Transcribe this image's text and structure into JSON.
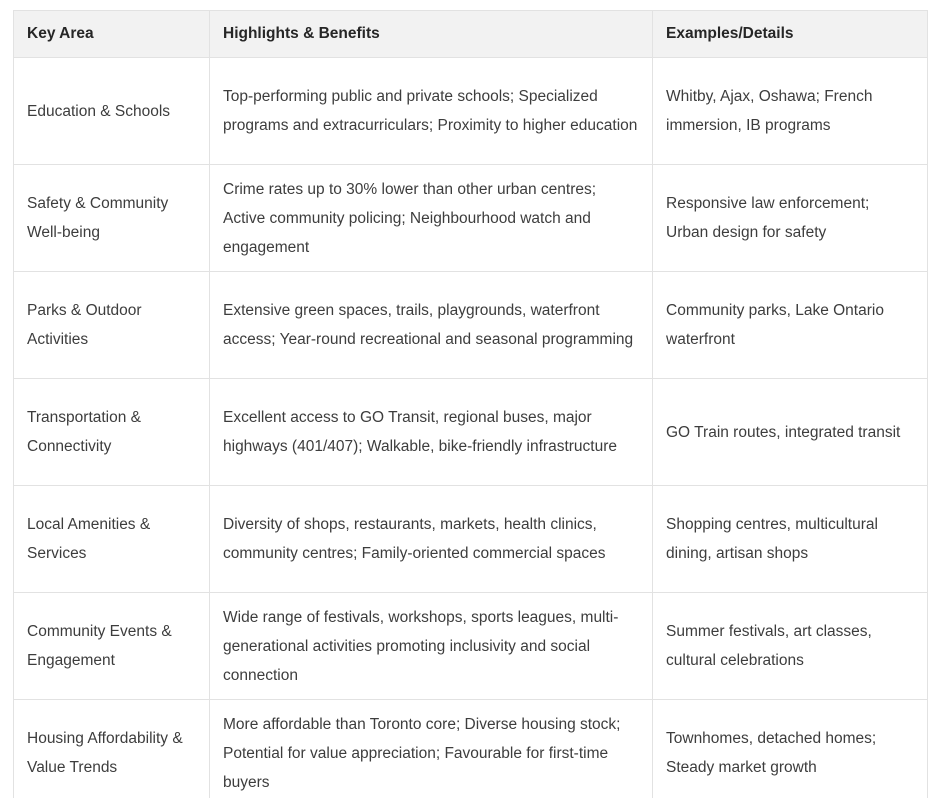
{
  "colors": {
    "header_bg": "#f2f2f2",
    "header_text": "#262626",
    "text": "#3d3d3d",
    "border": "#e2e2e2"
  },
  "table": {
    "headers": [
      "Key Area",
      "Highlights & Benefits",
      "Examples/Details"
    ],
    "rows": [
      {
        "key_area": "Education & Schools",
        "highlights": "Top-performing public and private schools; Specialized programs and extracurriculars; Proximity to higher education",
        "examples": "Whitby, Ajax, Oshawa; French immersion, IB programs"
      },
      {
        "key_area": "Safety & Community Well-being",
        "highlights": "Crime rates up to 30% lower than other urban centres; Active community policing; Neighbourhood watch and engagement",
        "examples": "Responsive law enforcement; Urban design for safety"
      },
      {
        "key_area": "Parks & Outdoor Activities",
        "highlights": "Extensive green spaces, trails, playgrounds, waterfront access; Year-round recreational and seasonal programming",
        "examples": "Community parks, Lake Ontario waterfront"
      },
      {
        "key_area": "Transportation & Connectivity",
        "highlights": "Excellent access to GO Transit, regional buses, major highways (401/407); Walkable, bike-friendly infrastructure",
        "examples": "GO Train routes, integrated transit"
      },
      {
        "key_area": "Local Amenities & Services",
        "highlights": "Diversity of shops, restaurants, markets, health clinics, community centres; Family-oriented commercial spaces",
        "examples": "Shopping centres, multicultural dining, artisan shops"
      },
      {
        "key_area": "Community Events & Engagement",
        "highlights": "Wide range of festivals, workshops, sports leagues, multi-generational activities promoting inclusivity and social connection",
        "examples": "Summer festivals, art classes, cultural celebrations"
      },
      {
        "key_area": "Housing Affordability & Value Trends",
        "highlights": "More affordable than Toronto core; Diverse housing stock; Potential for value appreciation; Favourable for first-time buyers",
        "examples": "Townhomes, detached homes; Steady market growth"
      }
    ]
  }
}
